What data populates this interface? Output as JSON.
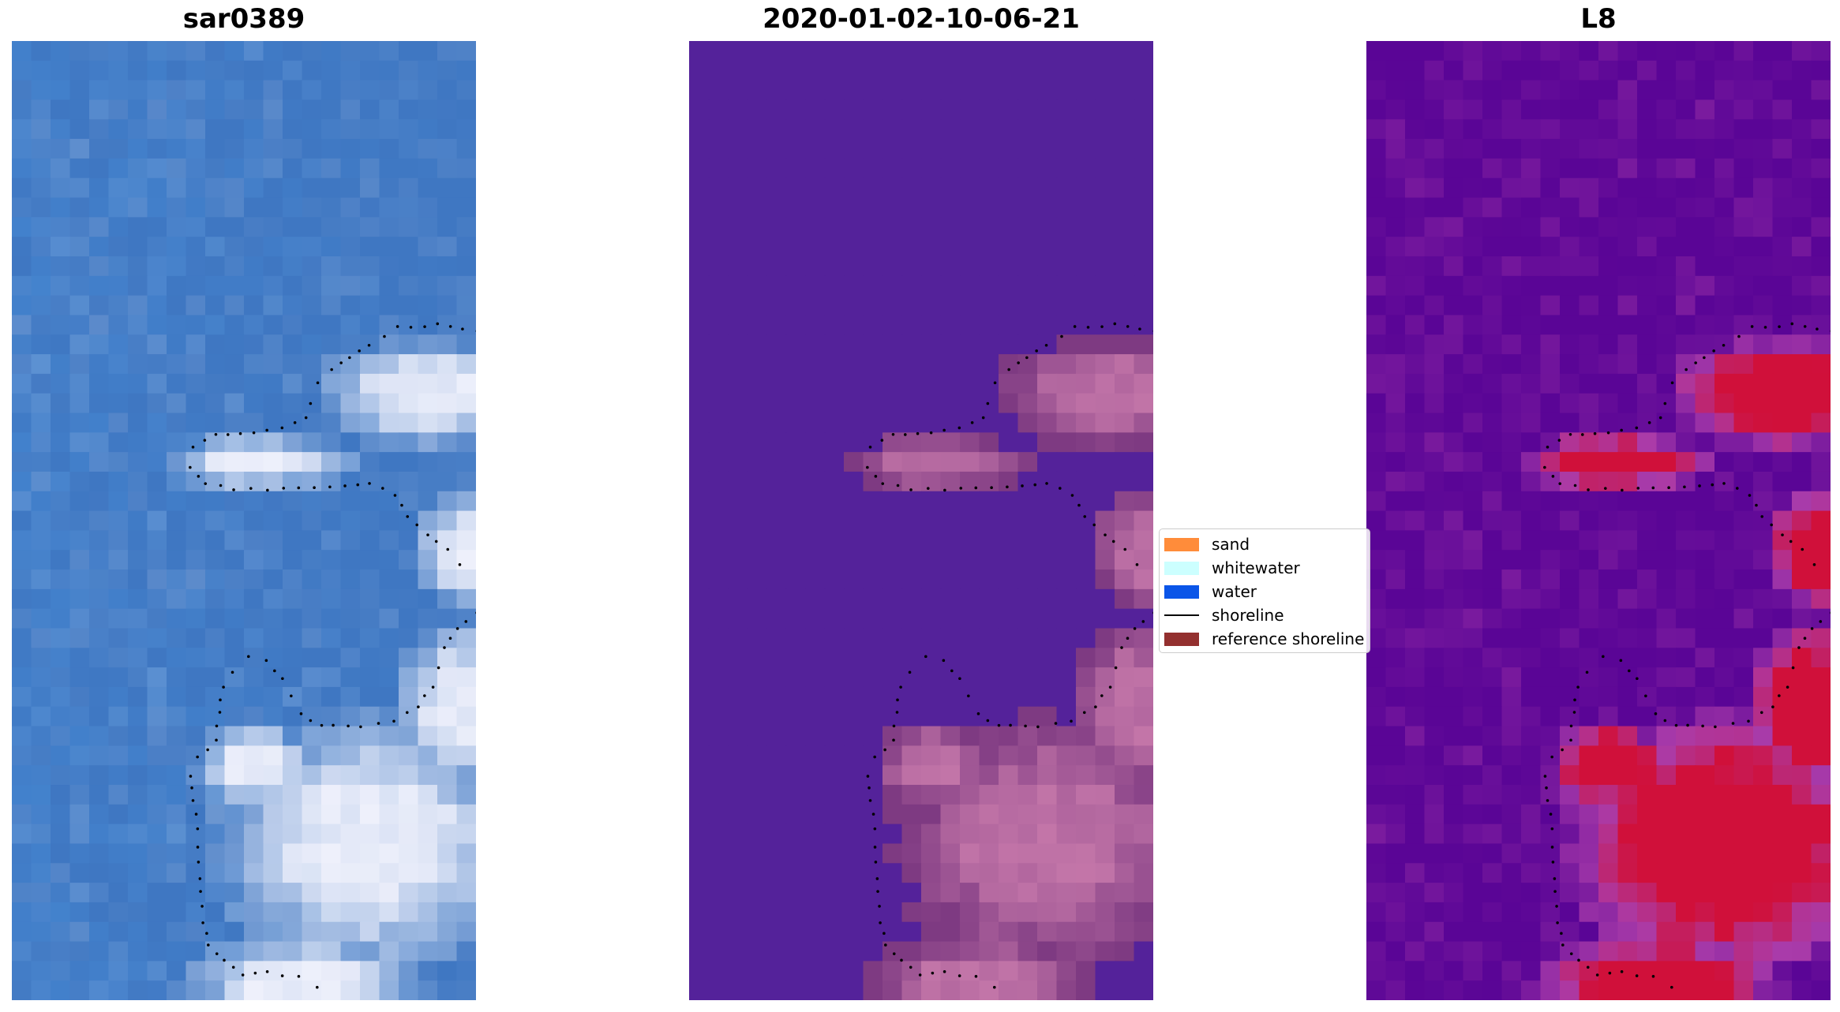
{
  "panels": [
    {
      "id": "rgb",
      "title": "sar0389"
    },
    {
      "id": "classified",
      "title": "2020-01-02-10-06-21"
    },
    {
      "id": "index",
      "title": "L8"
    }
  ],
  "legend": {
    "items": [
      {
        "label": "sand",
        "color": "#ff8c3a",
        "kind": "patch"
      },
      {
        "label": "whitewater",
        "color": "#ccffff",
        "kind": "patch"
      },
      {
        "label": "water",
        "color": "#0a55e8",
        "kind": "patch"
      },
      {
        "label": "shoreline",
        "color": "#000000",
        "kind": "line"
      },
      {
        "label": "reference shoreline",
        "color": "#93302f",
        "kind": "patch"
      }
    ]
  },
  "colors": {
    "water_rgb": "#3f77c2",
    "whitewater_rgb": "#eef0fb",
    "classified_water": "#54229a",
    "classified_land": "#7e3a82",
    "index_low": "#5a0596",
    "index_high": "#d0103a",
    "shoreline_dots": "#000000"
  },
  "chart_data": {
    "type": "heatmap",
    "description_type": "three-panel satellite image classification with shoreline overlay",
    "grid": false,
    "legend_position": "center between panels 2 and 3"
  }
}
